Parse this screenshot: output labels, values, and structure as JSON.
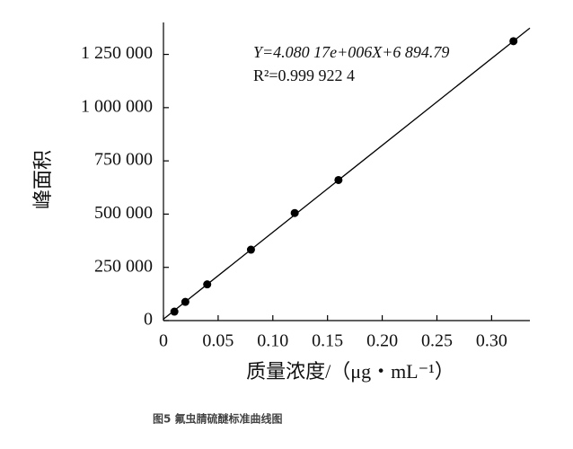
{
  "chart_data": {
    "type": "scatter",
    "y_label": "峰面积",
    "x_label": "质量浓度/（μg・mL⁻¹）",
    "caption": "图5 氟虫腈硫醚标准曲线图",
    "equation": "Y=4.080 17e+006X+6 894.79",
    "r2": "R²=0.999 922 4",
    "fit": {
      "slope": 4080170,
      "intercept": 6894.79
    },
    "x": [
      0.01,
      0.02,
      0.04,
      0.08,
      0.12,
      0.16,
      0.32
    ],
    "values": [
      42000,
      88000,
      170000,
      333000,
      505000,
      660000,
      1312000
    ],
    "color": "#000000",
    "xlim": [
      0,
      0.335
    ],
    "ylim": [
      0,
      1400000
    ],
    "xticks": [
      0,
      {
        "value": 0.05,
        "label": "0.05"
      },
      {
        "value": 0.1,
        "label": "0.10"
      },
      {
        "value": 0.15,
        "label": "0.15"
      },
      {
        "value": 0.2,
        "label": "0.20"
      },
      {
        "value": 0.25,
        "label": "0.25"
      },
      {
        "value": 0.3,
        "label": "0.30"
      }
    ],
    "yticks": [
      0,
      {
        "value": 250000,
        "label": "250 000"
      },
      {
        "value": 500000,
        "label": "500 000"
      },
      {
        "value": 750000,
        "label": "750 000"
      },
      {
        "value": 1000000,
        "label": "1 000 000"
      },
      {
        "value": 1250000,
        "label": "1 250 000"
      }
    ],
    "grid": false
  }
}
